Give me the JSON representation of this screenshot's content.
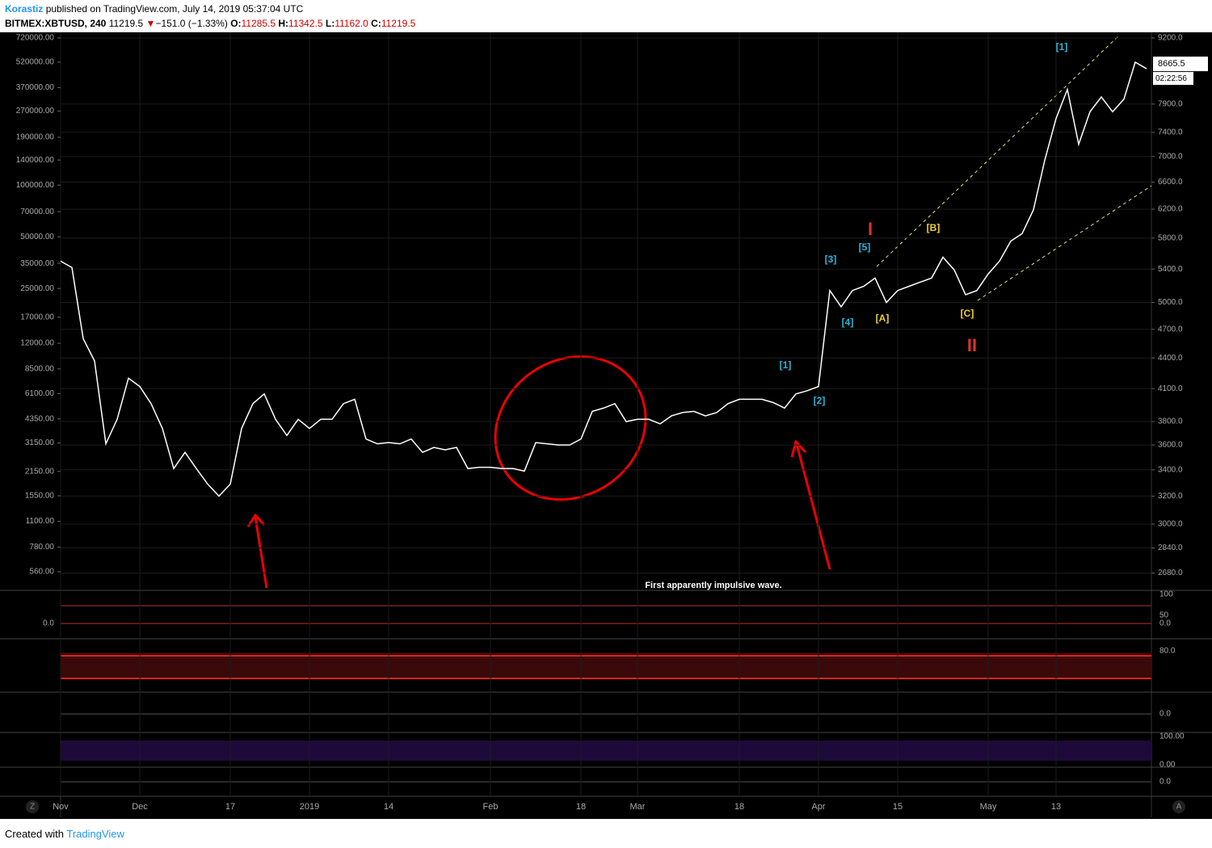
{
  "header": {
    "author": "Korastiz",
    "published": "published on TradingView.com, July 14, 2019 05:37:04 UTC",
    "symbol": "BITMEX:XBTUSD, 240",
    "last": "11219.5",
    "arrow": "▼",
    "change": "−151.0 (−1.33%)",
    "o_label": "O:",
    "open": "11285.5",
    "h_label": "H:",
    "high": "11342.5",
    "l_label": "L:",
    "low": "11162.0",
    "c_label": "C:",
    "close": "11219.5"
  },
  "chart_data": {
    "type": "line",
    "color": "#ffffff",
    "background": "#000000",
    "log_scale": true,
    "categories": [
      "Nov",
      null,
      null,
      null,
      null,
      null,
      null,
      "Dec",
      null,
      null,
      null,
      null,
      null,
      null,
      null,
      "17",
      null,
      null,
      null,
      null,
      null,
      null,
      "2019",
      null,
      null,
      null,
      null,
      null,
      null,
      "14",
      null,
      null,
      null,
      null,
      null,
      null,
      null,
      null,
      "Feb",
      null,
      null,
      null,
      null,
      null,
      null,
      null,
      "18",
      null,
      null,
      null,
      null,
      "Mar",
      null,
      null,
      null,
      null,
      null,
      null,
      null,
      null,
      "18",
      null,
      null,
      null,
      null,
      null,
      null,
      "Apr",
      null,
      null,
      null,
      null,
      null,
      null,
      "15",
      null,
      null,
      null,
      null,
      null,
      null,
      null,
      "May",
      null,
      null,
      null,
      null,
      null,
      "13",
      null,
      null,
      null,
      null,
      null,
      null,
      null,
      null
    ],
    "values": [
      5500,
      5420,
      4600,
      4370,
      3610,
      3820,
      4200,
      4120,
      3960,
      3740,
      3410,
      3540,
      3410,
      3290,
      3200,
      3290,
      3740,
      3960,
      4050,
      3820,
      3680,
      3820,
      3740,
      3820,
      3820,
      3960,
      4000,
      3650,
      3610,
      3620,
      3610,
      3650,
      3540,
      3580,
      3560,
      3580,
      3410,
      3420,
      3420,
      3410,
      3410,
      3390,
      3620,
      3610,
      3600,
      3600,
      3650,
      3890,
      3920,
      3960,
      3800,
      3820,
      3820,
      3780,
      3850,
      3880,
      3890,
      3850,
      3880,
      3960,
      4000,
      4000,
      4000,
      3970,
      3920,
      4050,
      4080,
      4120,
      5140,
      4950,
      5140,
      5190,
      5290,
      5000,
      5140,
      5190,
      5240,
      5290,
      5550,
      5390,
      5090,
      5140,
      5340,
      5500,
      5760,
      5860,
      6190,
      6940,
      7640,
      8170,
      7200,
      7760,
      8030,
      7760,
      7990,
      8700,
      8570
    ],
    "ylim": [
      2580,
      9320
    ],
    "yticks": [
      {
        "value": 9200,
        "label": "9200.0"
      },
      {
        "value": 7900,
        "label": "7900.0"
      },
      {
        "value": 7400,
        "label": "7400.0"
      },
      {
        "value": 7000,
        "label": "7000.0"
      },
      {
        "value": 6600,
        "label": "6600.0"
      },
      {
        "value": 6200,
        "label": "6200.0"
      },
      {
        "value": 5800,
        "label": "5800.0"
      },
      {
        "value": 5400,
        "label": "5400.0"
      },
      {
        "value": 5000,
        "label": "5000.0"
      },
      {
        "value": 4700,
        "label": "4700.0"
      },
      {
        "value": 4400,
        "label": "4400.0"
      },
      {
        "value": 4100,
        "label": "4100.0"
      },
      {
        "value": 3800,
        "label": "3800.0"
      },
      {
        "value": 3600,
        "label": "3600.0"
      },
      {
        "value": 3400,
        "label": "3400.0"
      },
      {
        "value": 3200,
        "label": "3200.0"
      },
      {
        "value": 3000,
        "label": "3000.0"
      },
      {
        "value": 2840,
        "label": "2840.0"
      },
      {
        "value": 2680,
        "label": "2680.0"
      }
    ],
    "y2lim": [
      441,
      776000
    ],
    "y2ticks": [
      {
        "value": 720000,
        "label": "720000.00"
      },
      {
        "value": 520000,
        "label": "520000.00"
      },
      {
        "value": 370000,
        "label": "370000.00"
      },
      {
        "value": 270000,
        "label": "270000.00"
      },
      {
        "value": 190000,
        "label": "190000.00"
      },
      {
        "value": 140000,
        "label": "140000.00"
      },
      {
        "value": 100000,
        "label": "100000.00"
      },
      {
        "value": 70000,
        "label": "70000.00"
      },
      {
        "value": 50000,
        "label": "50000.00"
      },
      {
        "value": 35000,
        "label": "35000.00"
      },
      {
        "value": 25000,
        "label": "25000.00"
      },
      {
        "value": 17000,
        "label": "17000.00"
      },
      {
        "value": 12000,
        "label": "12000.00"
      },
      {
        "value": 8500,
        "label": "8500.00"
      },
      {
        "value": 6100,
        "label": "6100.00"
      },
      {
        "value": 4350,
        "label": "4350.00"
      },
      {
        "value": 3150,
        "label": "3150.00"
      },
      {
        "value": 2150,
        "label": "2150.00"
      },
      {
        "value": 1550,
        "label": "1550.00"
      },
      {
        "value": 1100,
        "label": "1100.00"
      },
      {
        "value": 780,
        "label": "780.00"
      },
      {
        "value": 560,
        "label": "560.00"
      }
    ],
    "last_price": 8665.5,
    "countdown": "02:22:56",
    "annotations": [
      "[1]",
      "[5]",
      "[3]",
      "[4]",
      "[1]",
      "[2]",
      "I",
      "II",
      "[A]",
      "[B]",
      "[C]",
      "First apparently impulsive wave."
    ]
  },
  "panes": [
    {
      "right": [
        "100",
        "50",
        "0.0"
      ],
      "left": "0.0"
    },
    {
      "right": [
        "80.0"
      ]
    },
    {
      "right": [
        "0.0"
      ]
    },
    {
      "right": [
        "100.00",
        "0.00"
      ]
    },
    {
      "right": [
        "0.0"
      ]
    }
  ],
  "controls": {
    "zoom": "Z",
    "auto": "A"
  },
  "footer": {
    "created": "Created with",
    "brand": "TradingView"
  }
}
